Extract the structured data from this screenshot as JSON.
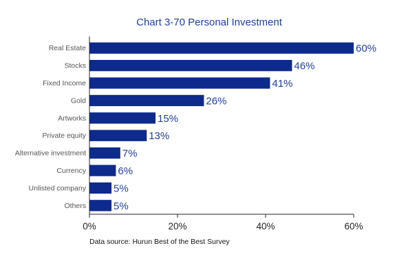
{
  "chart_data": {
    "type": "bar",
    "orientation": "horizontal",
    "title": "Chart 3-70 Personal Investment",
    "categories": [
      "Real Estate",
      "Stocks",
      "Fixed Income",
      "Gold",
      "Artworks",
      "Private equity",
      "Alternative investment",
      "Currency",
      "Unlisted company",
      "Others"
    ],
    "values": [
      60,
      46,
      41,
      26,
      15,
      13,
      7,
      6,
      5,
      5
    ],
    "data_labels": [
      "60%",
      "46%",
      "41%",
      "26%",
      "15%",
      "13%",
      "7%",
      "6%",
      "5%",
      "5%"
    ],
    "xlim": [
      0,
      60
    ],
    "xticks": [
      0,
      20,
      40,
      60
    ],
    "xtick_labels": [
      "0%",
      "20%",
      "40%",
      "60%"
    ],
    "grid": false,
    "legend": "none",
    "source": "Data source: Hurun Best of the Best Survey",
    "bar_color": "#0d2a8c",
    "label_color": "#1f3f99"
  }
}
